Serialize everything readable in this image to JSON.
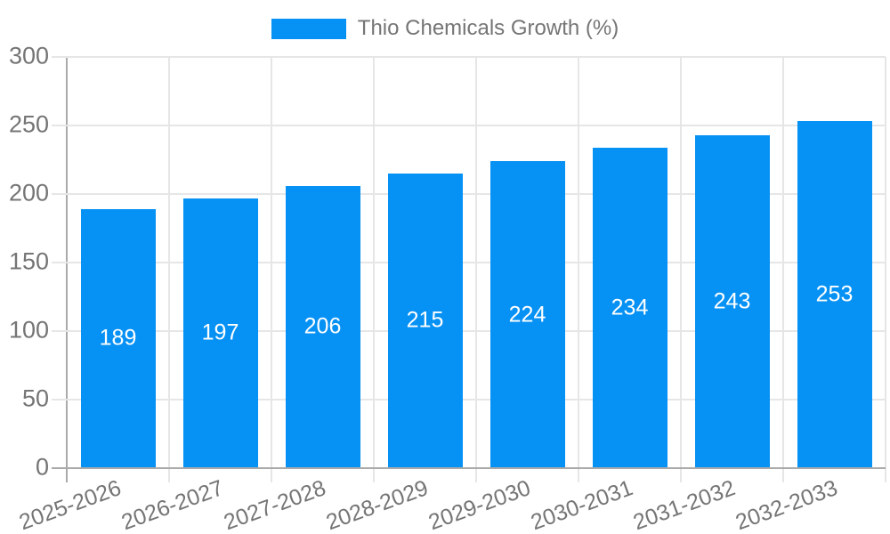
{
  "legend": {
    "label": "Thio Chemicals Growth (%)"
  },
  "chart_data": {
    "type": "bar",
    "title": "Thio Chemicals Growth (%)",
    "categories": [
      "2025-2026",
      "2026-2027",
      "2027-2028",
      "2028-2029",
      "2029-2030",
      "2030-2031",
      "2031-2032",
      "2032-2033"
    ],
    "values": [
      189,
      197,
      206,
      215,
      224,
      234,
      243,
      253
    ],
    "series_name": "Thio Chemicals Growth (%)",
    "xlabel": "",
    "ylabel": "",
    "ylim": [
      0,
      300
    ],
    "yticks": [
      0,
      50,
      100,
      150,
      200,
      250,
      300
    ],
    "grid": true,
    "legend_position": "top-center",
    "x_label_rotation_deg": -20,
    "colors": {
      "bar": "#0691F4",
      "value_label": "#FFFFFF",
      "axis_text": "#757575",
      "legend_text": "#757575",
      "gridline": "#E6E6E6",
      "axis_line": "#AAAAAA",
      "background": "#FFFFFF"
    }
  }
}
